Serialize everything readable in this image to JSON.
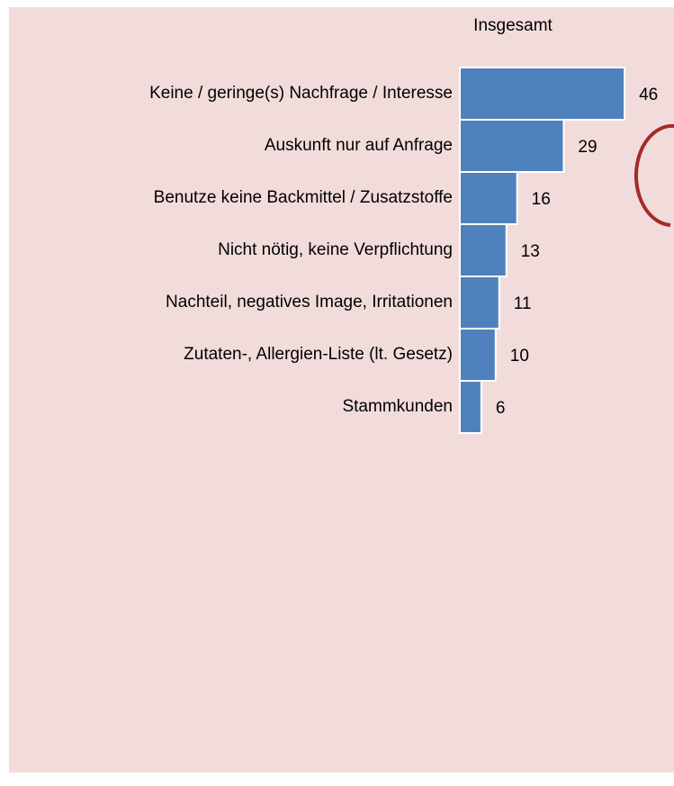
{
  "chart_data": {
    "type": "hbar",
    "title": "Insgesamt",
    "categories": [
      "Keine / geringe(s) Nachfrage / Interesse",
      "Auskunft nur auf Anfrage",
      "Benutze keine Backmittel / Zusatzstoffe",
      "Nicht nötig, keine Verpflichtung",
      "Nachteil, negatives Image, Irritationen",
      "Zutaten-, Allergien-Liste (lt. Gesetz)",
      "Stammkunden"
    ],
    "values": [
      46,
      29,
      16,
      13,
      11,
      10,
      6
    ],
    "color": "#4f81bd"
  }
}
